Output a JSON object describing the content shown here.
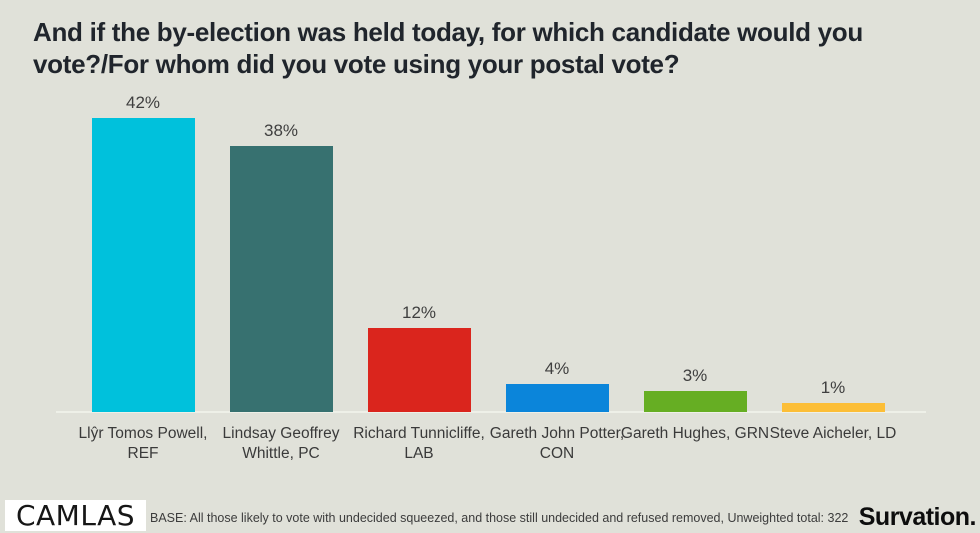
{
  "title": "And if the by-election was held today, for which candidate would you vote?/For whom did you vote using your postal vote?",
  "chart_data": {
    "type": "bar",
    "title": "And if the by-election was held today, for which candidate would you vote?/For whom did you vote using your postal vote?",
    "categories": [
      "Llŷr Tomos Powell, REF",
      "Lindsay Geoffrey Whittle, PC",
      "Richard Tunnicliffe, LAB",
      "Gareth John Potter, CON",
      "Gareth Hughes, GRN",
      "Steve Aicheler, LD"
    ],
    "values": [
      42,
      38,
      12,
      4,
      3,
      1
    ],
    "value_labels": [
      "42%",
      "38%",
      "12%",
      "4%",
      "3%",
      "1%"
    ],
    "bar_colors": [
      "#00c1dc",
      "#377170",
      "#da251d",
      "#0b85da",
      "#66ae23",
      "#fcbe37"
    ],
    "xlabel": "",
    "ylabel": "",
    "ylim": [
      0,
      46
    ],
    "grid": false,
    "legend": false,
    "background_color": "#e0e1d9"
  },
  "footer": {
    "brand_left": "CAMLAS",
    "base_note": "BASE: All those likely to vote with undecided squeezed, and those still undecided and refused removed, Unweighted total: 322",
    "brand_right": "Survation."
  }
}
